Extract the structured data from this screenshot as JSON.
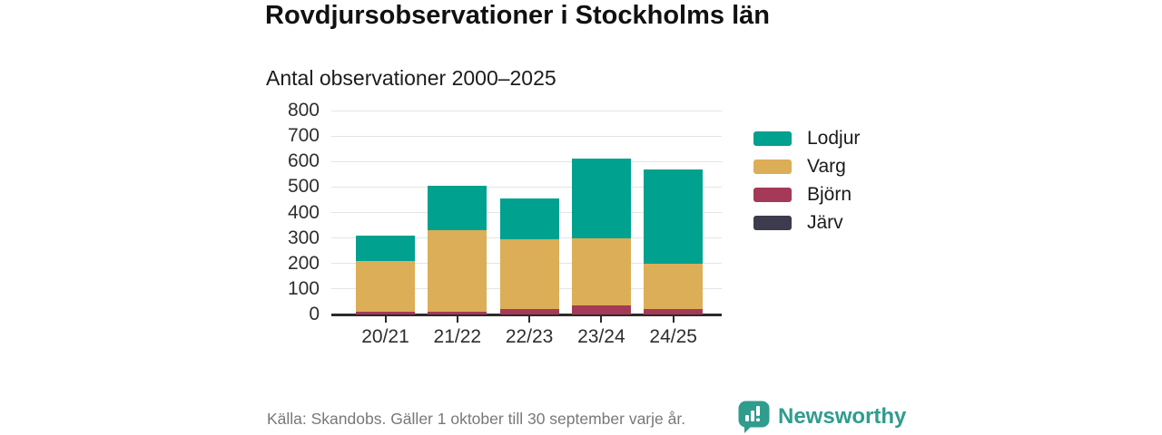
{
  "header": {
    "title": "Rovdjursobservationer i Stockholms län",
    "subtitle": "Antal observationer 2000–2025"
  },
  "chart_data": {
    "type": "bar",
    "stacked": true,
    "title": "Rovdjursobservationer i Stockholms län",
    "subtitle": "Antal observationer 2000–2025",
    "xlabel": "",
    "ylabel": "",
    "categories": [
      "20/21",
      "21/22",
      "22/23",
      "23/24",
      "24/25"
    ],
    "series": [
      {
        "name": "Järv",
        "color": "#3c3c4e",
        "values": [
          0,
          0,
          0,
          0,
          0
        ]
      },
      {
        "name": "Björn",
        "color": "#a43a58",
        "values": [
          10,
          10,
          20,
          35,
          20
        ]
      },
      {
        "name": "Varg",
        "color": "#dcae57",
        "values": [
          200,
          320,
          275,
          265,
          180
        ]
      },
      {
        "name": "Lodjur",
        "color": "#00a18f",
        "values": [
          100,
          175,
          160,
          310,
          370
        ]
      }
    ],
    "totals": [
      310,
      505,
      455,
      610,
      570
    ],
    "legend_order": [
      "Lodjur",
      "Varg",
      "Björn",
      "Järv"
    ],
    "legend_position": "right",
    "ylim": [
      0,
      800
    ],
    "yticks": [
      0,
      100,
      200,
      300,
      400,
      500,
      600,
      700,
      800
    ],
    "grid": true
  },
  "footer": {
    "source": "Källa: Skandobs. Gäller 1 oktober till 30 september varje år.",
    "brand": "Newsworthy"
  },
  "colors": {
    "lodjur": "#00a18f",
    "varg": "#dcae57",
    "bjorn": "#a43a58",
    "jarv": "#3c3c4e",
    "brand_teal": "#2f9c8e",
    "axis": "#2b2b2b",
    "grid": "#e4e4e4",
    "text": "#1a1a1a",
    "muted": "#787878"
  }
}
